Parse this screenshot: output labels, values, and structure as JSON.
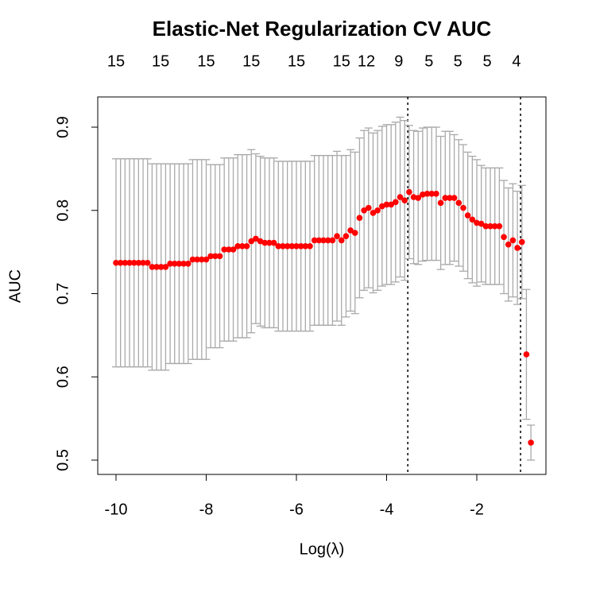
{
  "chart_data": {
    "type": "errorbar-scatter",
    "title": "Elastic-Net Regularization CV AUC",
    "xlabel": "Log(λ)",
    "ylabel": "AUC",
    "xlim": [
      -10.405,
      -0.467
    ],
    "ylim": [
      0.4828,
      0.9363
    ],
    "xticks": [
      -10,
      -8,
      -6,
      -4,
      -2
    ],
    "yticks": [
      0.5,
      0.6,
      0.7,
      0.8,
      0.9
    ],
    "top_ticks": [
      {
        "value": -10,
        "label": "15"
      },
      {
        "value": -9.01,
        "label": "15"
      },
      {
        "value": -8,
        "label": "15"
      },
      {
        "value": -7,
        "label": "15"
      },
      {
        "value": -6,
        "label": "15"
      },
      {
        "value": -5,
        "label": "15"
      },
      {
        "value": -4.45,
        "label": "12"
      },
      {
        "value": -3.73,
        "label": "9"
      },
      {
        "value": -3.06,
        "label": "5"
      },
      {
        "value": -2.42,
        "label": "5"
      },
      {
        "value": -1.77,
        "label": "5"
      },
      {
        "value": -1.12,
        "label": "4"
      }
    ],
    "vlines": [
      -3.53,
      -1.03
    ],
    "point_color": "#ff0000",
    "error_color": "#a9a9a9",
    "x": [
      -10.0,
      -9.9,
      -9.8,
      -9.7,
      -9.6,
      -9.5,
      -9.4,
      -9.3,
      -9.2,
      -9.1,
      -9.0,
      -8.9,
      -8.8,
      -8.7,
      -8.6,
      -8.5,
      -8.4,
      -8.3,
      -8.2,
      -8.1,
      -8.0,
      -7.9,
      -7.8,
      -7.7,
      -7.6,
      -7.5,
      -7.4,
      -7.3,
      -7.2,
      -7.1,
      -7.0,
      -6.9,
      -6.8,
      -6.7,
      -6.6,
      -6.5,
      -6.4,
      -6.3,
      -6.2,
      -6.1,
      -6.0,
      -5.9,
      -5.8,
      -5.7,
      -5.6,
      -5.5,
      -5.4,
      -5.3,
      -5.2,
      -5.1,
      -5.0,
      -4.9,
      -4.8,
      -4.7,
      -4.6,
      -4.5,
      -4.4,
      -4.3,
      -4.2,
      -4.1,
      -4.0,
      -3.9,
      -3.8,
      -3.7,
      -3.6,
      -3.5,
      -3.4,
      -3.3,
      -3.2,
      -3.1,
      -3.0,
      -2.9,
      -2.8,
      -2.7,
      -2.6,
      -2.5,
      -2.4,
      -2.3,
      -2.2,
      -2.1,
      -2.0,
      -1.9,
      -1.8,
      -1.7,
      -1.6,
      -1.5,
      -1.4,
      -1.3,
      -1.2,
      -1.1,
      -1.0,
      -0.9,
      -0.8
    ],
    "values": [
      0.737,
      0.737,
      0.737,
      0.737,
      0.737,
      0.737,
      0.737,
      0.737,
      0.732,
      0.732,
      0.732,
      0.732,
      0.736,
      0.736,
      0.736,
      0.736,
      0.736,
      0.741,
      0.741,
      0.741,
      0.741,
      0.745,
      0.745,
      0.745,
      0.753,
      0.753,
      0.753,
      0.757,
      0.757,
      0.757,
      0.763,
      0.766,
      0.763,
      0.761,
      0.761,
      0.761,
      0.757,
      0.757,
      0.757,
      0.757,
      0.757,
      0.757,
      0.757,
      0.757,
      0.764,
      0.764,
      0.764,
      0.764,
      0.764,
      0.769,
      0.764,
      0.769,
      0.776,
      0.773,
      0.791,
      0.8,
      0.803,
      0.797,
      0.8,
      0.805,
      0.807,
      0.807,
      0.81,
      0.816,
      0.812,
      0.822,
      0.816,
      0.815,
      0.819,
      0.82,
      0.82,
      0.82,
      0.809,
      0.815,
      0.815,
      0.815,
      0.809,
      0.803,
      0.794,
      0.789,
      0.785,
      0.784,
      0.781,
      0.781,
      0.781,
      0.781,
      0.768,
      0.759,
      0.764,
      0.755,
      0.762,
      0.627,
      0.521
    ],
    "errors": [
      0.125,
      0.125,
      0.125,
      0.125,
      0.125,
      0.125,
      0.125,
      0.125,
      0.124,
      0.124,
      0.124,
      0.124,
      0.12,
      0.12,
      0.12,
      0.12,
      0.12,
      0.12,
      0.12,
      0.12,
      0.12,
      0.11,
      0.11,
      0.11,
      0.11,
      0.11,
      0.11,
      0.11,
      0.11,
      0.11,
      0.11,
      0.102,
      0.102,
      0.102,
      0.102,
      0.102,
      0.102,
      0.102,
      0.102,
      0.102,
      0.102,
      0.102,
      0.102,
      0.102,
      0.102,
      0.102,
      0.102,
      0.102,
      0.102,
      0.102,
      0.102,
      0.097,
      0.097,
      0.097,
      0.096,
      0.096,
      0.096,
      0.096,
      0.096,
      0.096,
      0.096,
      0.096,
      0.096,
      0.096,
      0.096,
      0.08,
      0.08,
      0.08,
      0.08,
      0.08,
      0.08,
      0.08,
      0.08,
      0.08,
      0.08,
      0.076,
      0.076,
      0.076,
      0.076,
      0.076,
      0.076,
      0.07,
      0.07,
      0.07,
      0.07,
      0.07,
      0.068,
      0.068,
      0.068,
      0.068,
      0.068,
      0.078,
      0.021
    ]
  }
}
